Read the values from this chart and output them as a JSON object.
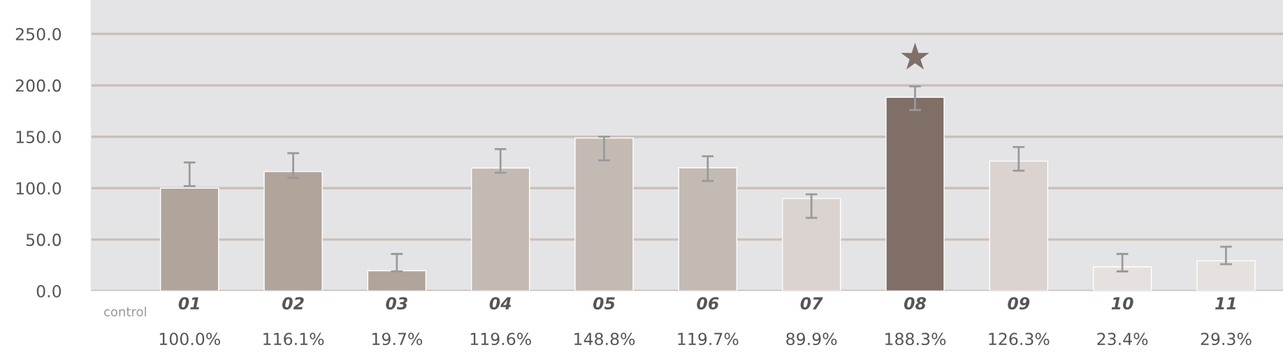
{
  "chart_data": {
    "type": "bar",
    "categories": [
      "01",
      "02",
      "03",
      "04",
      "05",
      "06",
      "07",
      "08",
      "09",
      "10",
      "11"
    ],
    "values": [
      100.0,
      116.1,
      19.7,
      119.6,
      148.8,
      119.7,
      89.9,
      188.3,
      126.3,
      23.4,
      29.3
    ],
    "colors": [
      "#b1a49b",
      "#b1a49b",
      "#b1a49b",
      "#c4bab4",
      "#c4bab4",
      "#c4bab4",
      "#dbd3cf",
      "#7f6f66",
      "#dbd3cf",
      "#e6e1de",
      "#e6e1de"
    ],
    "errors": [
      [
        102,
        125
      ],
      [
        110,
        134
      ],
      [
        19,
        36
      ],
      [
        115,
        138
      ],
      [
        127,
        150
      ],
      [
        107,
        131
      ],
      [
        71,
        94
      ],
      [
        176,
        199
      ],
      [
        117,
        140
      ],
      [
        19,
        36
      ],
      [
        26,
        43
      ]
    ],
    "value_labels": [
      "100.0%",
      "116.1%",
      "19.7%",
      "119.6%",
      "148.8%",
      "119.7%",
      "89.9%",
      "188.3%",
      "126.3%",
      "23.4%",
      "29.3%"
    ],
    "ylim": [
      0,
      283
    ],
    "yticks": [
      {
        "value": 0,
        "label": "0.0"
      },
      {
        "value": 50,
        "label": "50.0"
      },
      {
        "value": 100,
        "label": "100.0"
      },
      {
        "value": 150,
        "label": "150.0"
      },
      {
        "value": 200,
        "label": "200.0"
      },
      {
        "value": 250,
        "label": "250.0"
      }
    ],
    "grid": "y",
    "annotations": [
      "control",
      "★"
    ]
  }
}
